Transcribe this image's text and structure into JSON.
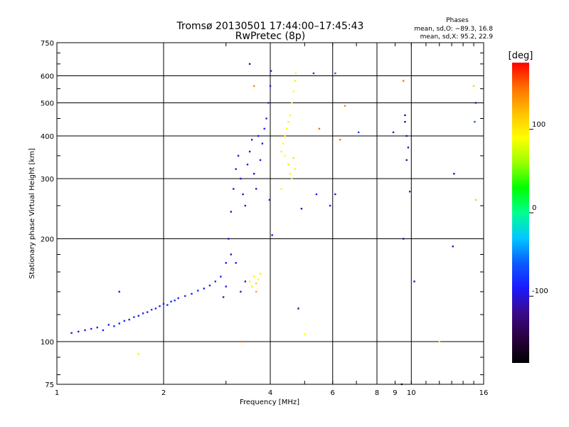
{
  "chart_data": {
    "type": "scatter",
    "title": "Tromsø 20130501 17:44:00–17:45:43",
    "subtitle": "RwPretec (8p)",
    "stats": {
      "heading": "Phases",
      "line1": "mean, sd,O: −89.3, 16.8",
      "line2": "mean, sd,X:  95.2, 22.9"
    },
    "xlabel": "Frequency [MHz]",
    "ylabel": "Stationary phase Virtual Height [km]",
    "xscale": "log",
    "yscale": "log",
    "xlim": [
      1,
      16
    ],
    "ylim": [
      75,
      750
    ],
    "xticks": [
      1,
      2,
      4,
      6,
      8,
      9,
      10,
      16
    ],
    "yticks": [
      75,
      100,
      200,
      300,
      400,
      500,
      600,
      750
    ],
    "xgrid": [
      2,
      4,
      6,
      8,
      10
    ],
    "ygrid": [
      100,
      200,
      300,
      400,
      500,
      600
    ],
    "colorbar": {
      "label": "[deg]",
      "range": [
        -180,
        180
      ],
      "ticks": [
        -100,
        0,
        100
      ],
      "stops": [
        "#000000",
        "#2a0040",
        "#3a0a8a",
        "#1a1aff",
        "#0a5cff",
        "#00c8ff",
        "#00ff90",
        "#00ff00",
        "#9aff00",
        "#ffff00",
        "#ffc000",
        "#ff7000",
        "#ff0000"
      ]
    },
    "series": [
      {
        "mode": "O",
        "points": [
          [
            1.1,
            106,
            -95
          ],
          [
            1.15,
            107,
            -92
          ],
          [
            1.2,
            108,
            -100
          ],
          [
            1.25,
            109,
            -88
          ],
          [
            1.3,
            110,
            -85
          ],
          [
            1.35,
            108,
            -98
          ],
          [
            1.4,
            112,
            -90
          ],
          [
            1.45,
            111,
            -82
          ],
          [
            1.5,
            113,
            -95
          ],
          [
            1.55,
            115,
            -87
          ],
          [
            1.6,
            116,
            -92
          ],
          [
            1.65,
            118,
            -80
          ],
          [
            1.7,
            119,
            -96
          ],
          [
            1.75,
            121,
            -85
          ],
          [
            1.8,
            122,
            -90
          ],
          [
            1.85,
            124,
            -78
          ],
          [
            1.9,
            125,
            -88
          ],
          [
            1.95,
            127,
            -94
          ],
          [
            2.0,
            129,
            -84
          ],
          [
            2.05,
            128,
            -90
          ],
          [
            2.1,
            131,
            -86
          ],
          [
            2.15,
            132,
            -80
          ],
          [
            2.2,
            134,
            -92
          ],
          [
            2.3,
            136,
            -84
          ],
          [
            2.4,
            138,
            -88
          ],
          [
            2.5,
            141,
            -82
          ],
          [
            2.6,
            143,
            -90
          ],
          [
            2.7,
            146,
            -86
          ],
          [
            2.8,
            150,
            -80
          ],
          [
            2.9,
            155,
            -88
          ],
          [
            3.0,
            170,
            -95
          ],
          [
            3.05,
            200,
            -100
          ],
          [
            3.1,
            240,
            -105
          ],
          [
            3.15,
            280,
            -98
          ],
          [
            3.2,
            320,
            -102
          ],
          [
            3.25,
            350,
            -96
          ],
          [
            3.3,
            300,
            -100
          ],
          [
            3.35,
            270,
            -104
          ],
          [
            3.4,
            250,
            -98
          ],
          [
            3.45,
            330,
            -92
          ],
          [
            3.5,
            360,
            -100
          ],
          [
            3.55,
            390,
            -95
          ],
          [
            3.6,
            310,
            -102
          ],
          [
            3.65,
            280,
            -97
          ],
          [
            3.7,
            400,
            -90
          ],
          [
            3.75,
            340,
            -99
          ],
          [
            3.8,
            380,
            -94
          ],
          [
            3.85,
            420,
            -88
          ],
          [
            3.9,
            450,
            -85
          ],
          [
            3.95,
            500,
            -80
          ],
          [
            4.0,
            560,
            -86
          ],
          [
            4.02,
            620,
            -90
          ],
          [
            3.98,
            260,
            -105
          ],
          [
            4.05,
            205,
            -98
          ],
          [
            3.4,
            150,
            -100
          ],
          [
            3.3,
            140,
            -96
          ],
          [
            3.2,
            170,
            -102
          ],
          [
            3.1,
            180,
            -99
          ],
          [
            2.95,
            135,
            -100
          ],
          [
            3.0,
            145,
            -94
          ]
        ]
      },
      {
        "mode": "X",
        "points": [
          [
            3.5,
            150,
            95
          ],
          [
            3.55,
            145,
            100
          ],
          [
            3.6,
            155,
            88
          ],
          [
            3.65,
            148,
            110
          ],
          [
            3.7,
            152,
            92
          ],
          [
            3.75,
            158,
            98
          ],
          [
            3.65,
            140,
            130
          ],
          [
            4.3,
            360,
            95
          ],
          [
            4.35,
            380,
            90
          ],
          [
            4.4,
            400,
            100
          ],
          [
            4.45,
            420,
            92
          ],
          [
            4.5,
            440,
            98
          ],
          [
            4.55,
            460,
            88
          ],
          [
            4.6,
            500,
            94
          ],
          [
            4.65,
            540,
            90
          ],
          [
            4.7,
            580,
            96
          ],
          [
            4.72,
            610,
            92
          ],
          [
            4.5,
            330,
            102
          ],
          [
            4.55,
            310,
            95
          ],
          [
            4.6,
            300,
            100
          ],
          [
            4.4,
            350,
            90
          ],
          [
            4.3,
            280,
            88
          ],
          [
            4.65,
            345,
            105
          ],
          [
            4.7,
            320,
            95
          ],
          [
            5.0,
            105,
            90
          ],
          [
            6.5,
            490,
            140
          ],
          [
            9.5,
            580,
            150
          ],
          [
            12.0,
            100,
            98
          ],
          [
            15.0,
            560,
            110
          ],
          [
            15.2,
            260,
            60
          ],
          [
            6.3,
            390,
            150
          ],
          [
            5.5,
            420,
            150
          ],
          [
            3.3,
            100,
            150
          ],
          [
            1.7,
            92,
            96
          ],
          [
            3.6,
            560,
            140
          ]
        ]
      },
      {
        "mode": "other",
        "points": [
          [
            3.5,
            650,
            -115
          ],
          [
            5.3,
            610,
            -80
          ],
          [
            6.1,
            610,
            -60
          ],
          [
            7.1,
            410,
            -70
          ],
          [
            8.9,
            410,
            -110
          ],
          [
            9.6,
            460,
            -115
          ],
          [
            9.6,
            440,
            -120
          ],
          [
            9.7,
            400,
            -115
          ],
          [
            9.8,
            370,
            -110
          ],
          [
            9.7,
            340,
            -115
          ],
          [
            9.9,
            275,
            -80
          ],
          [
            9.5,
            200,
            -110
          ],
          [
            10.2,
            150,
            -110
          ],
          [
            13.2,
            310,
            -110
          ],
          [
            13.1,
            190,
            -110
          ],
          [
            15.1,
            440,
            -60
          ],
          [
            15.2,
            500,
            -100
          ],
          [
            9.4,
            75,
            -120
          ],
          [
            4.8,
            125,
            -120
          ],
          [
            1.5,
            140,
            -100
          ],
          [
            5.4,
            270,
            -90
          ],
          [
            6.1,
            270,
            -100
          ],
          [
            5.9,
            250,
            -90
          ],
          [
            4.9,
            245,
            -115
          ]
        ]
      }
    ]
  }
}
